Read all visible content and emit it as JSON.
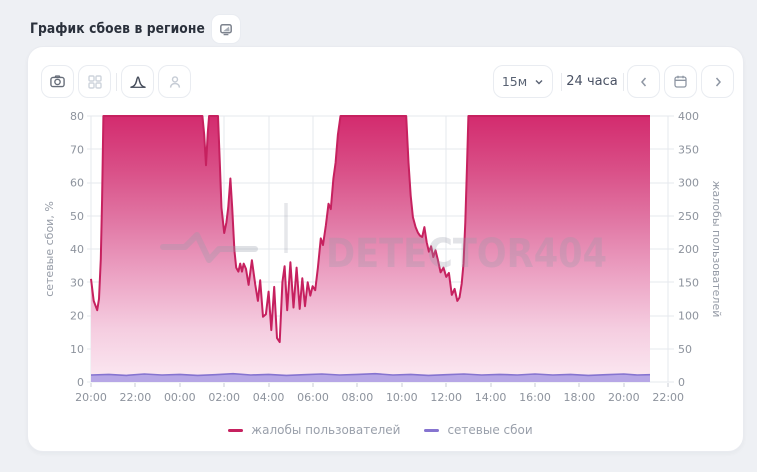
{
  "page": {
    "title": "График сбоев в регионе"
  },
  "toolbar": {
    "icons_left": [
      "camera-icon",
      "grid-icon",
      "curve-icon",
      "person-icon"
    ],
    "interval_select": {
      "value": "15м"
    },
    "range_label": "24 часа",
    "nav_icons": [
      "chevron-left-icon",
      "calendar-icon",
      "chevron-right-icon"
    ]
  },
  "legend": {
    "items": [
      {
        "label": "жалобы пользователей",
        "color": "#c6215f"
      },
      {
        "label": "сетевые сбои",
        "color": "#8674d0"
      }
    ]
  },
  "chart_data": {
    "type": "area",
    "watermark": "DETECTOR404",
    "x_ticks": [
      "20:00",
      "22:00",
      "00:00",
      "02:00",
      "04:00",
      "06:00",
      "08:00",
      "10:00",
      "12:00",
      "14:00",
      "16:00",
      "18:00",
      "20:00",
      "22:00"
    ],
    "x_domain_hours": [
      0,
      26
    ],
    "data_end_hour": 25.18,
    "y_left": {
      "title": "сетевые сбои, %",
      "ticks": [
        0,
        10,
        20,
        30,
        40,
        50,
        60,
        70,
        80
      ],
      "max": 80
    },
    "y_right": {
      "title": "жалобы пользователей",
      "ticks": [
        0,
        50,
        100,
        150,
        200,
        250,
        300,
        350,
        400
      ],
      "max": 400
    },
    "series": [
      {
        "name": "жалобы пользователей",
        "axis": "right",
        "color": "#c6215f",
        "gradient": [
          "#d32b6e",
          "#d94f87",
          "#e178a5",
          "#eca3c4",
          "#f5cde0",
          "#fbe9f2"
        ],
        "points": [
          [
            0,
            155
          ],
          [
            0.12,
            122
          ],
          [
            0.28,
            108
          ],
          [
            0.36,
            125
          ],
          [
            0.44,
            185
          ],
          [
            0.5,
            275
          ],
          [
            0.56,
            400
          ],
          [
            5.02,
            400
          ],
          [
            5.1,
            372
          ],
          [
            5.18,
            326
          ],
          [
            5.26,
            375
          ],
          [
            5.32,
            400
          ],
          [
            5.72,
            400
          ],
          [
            5.8,
            330
          ],
          [
            5.88,
            262
          ],
          [
            6.0,
            224
          ],
          [
            6.1,
            240
          ],
          [
            6.18,
            262
          ],
          [
            6.28,
            306
          ],
          [
            6.36,
            262
          ],
          [
            6.46,
            198
          ],
          [
            6.54,
            172
          ],
          [
            6.64,
            166
          ],
          [
            6.72,
            178
          ],
          [
            6.8,
            166
          ],
          [
            6.88,
            178
          ],
          [
            6.98,
            170
          ],
          [
            7.1,
            146
          ],
          [
            7.25,
            183
          ],
          [
            7.4,
            146
          ],
          [
            7.52,
            122
          ],
          [
            7.62,
            153
          ],
          [
            7.75,
            98
          ],
          [
            7.88,
            102
          ],
          [
            8.0,
            136
          ],
          [
            8.12,
            78
          ],
          [
            8.25,
            143
          ],
          [
            8.38,
            66
          ],
          [
            8.5,
            60
          ],
          [
            8.62,
            150
          ],
          [
            8.72,
            174
          ],
          [
            8.84,
            108
          ],
          [
            8.98,
            180
          ],
          [
            9.12,
            112
          ],
          [
            9.26,
            172
          ],
          [
            9.4,
            110
          ],
          [
            9.52,
            156
          ],
          [
            9.64,
            114
          ],
          [
            9.76,
            150
          ],
          [
            9.88,
            130
          ],
          [
            9.98,
            144
          ],
          [
            10.1,
            138
          ],
          [
            10.22,
            172
          ],
          [
            10.35,
            216
          ],
          [
            10.45,
            206
          ],
          [
            10.58,
            236
          ],
          [
            10.7,
            268
          ],
          [
            10.8,
            260
          ],
          [
            10.92,
            306
          ],
          [
            11.02,
            330
          ],
          [
            11.12,
            372
          ],
          [
            11.24,
            400
          ],
          [
            14.2,
            400
          ],
          [
            14.3,
            330
          ],
          [
            14.4,
            280
          ],
          [
            14.5,
            248
          ],
          [
            14.62,
            233
          ],
          [
            14.72,
            225
          ],
          [
            14.82,
            220
          ],
          [
            14.92,
            218
          ],
          [
            15.02,
            233
          ],
          [
            15.12,
            210
          ],
          [
            15.22,
            196
          ],
          [
            15.32,
            204
          ],
          [
            15.42,
            188
          ],
          [
            15.52,
            198
          ],
          [
            15.62,
            184
          ],
          [
            15.75,
            165
          ],
          [
            15.88,
            172
          ],
          [
            16.0,
            158
          ],
          [
            16.12,
            164
          ],
          [
            16.25,
            131
          ],
          [
            16.38,
            140
          ],
          [
            16.5,
            122
          ],
          [
            16.6,
            127
          ],
          [
            16.7,
            148
          ],
          [
            16.78,
            178
          ],
          [
            16.86,
            240
          ],
          [
            16.94,
            330
          ],
          [
            17.0,
            400
          ],
          [
            25.18,
            400
          ]
        ]
      },
      {
        "name": "сетевые сбои",
        "axis": "left",
        "color": "#8674d0",
        "fill": "#b7a7e6",
        "points": [
          [
            0,
            2.1
          ],
          [
            0.8,
            2.3
          ],
          [
            1.6,
            2.0
          ],
          [
            2.4,
            2.4
          ],
          [
            3.2,
            2.1
          ],
          [
            4.0,
            2.3
          ],
          [
            4.8,
            2.0
          ],
          [
            5.6,
            2.2
          ],
          [
            6.4,
            2.5
          ],
          [
            7.2,
            2.1
          ],
          [
            8.0,
            2.3
          ],
          [
            8.8,
            2.0
          ],
          [
            9.6,
            2.2
          ],
          [
            10.4,
            2.4
          ],
          [
            11.2,
            2.1
          ],
          [
            12.0,
            2.3
          ],
          [
            12.8,
            2.5
          ],
          [
            13.6,
            2.1
          ],
          [
            14.4,
            2.3
          ],
          [
            15.2,
            2.0
          ],
          [
            16.0,
            2.2
          ],
          [
            16.8,
            2.4
          ],
          [
            17.6,
            2.1
          ],
          [
            18.4,
            2.3
          ],
          [
            19.2,
            2.1
          ],
          [
            20.0,
            2.4
          ],
          [
            20.8,
            2.1
          ],
          [
            21.6,
            2.3
          ],
          [
            22.4,
            2.0
          ],
          [
            23.2,
            2.2
          ],
          [
            24.0,
            2.4
          ],
          [
            24.6,
            2.1
          ],
          [
            25.18,
            2.2
          ]
        ]
      }
    ]
  }
}
